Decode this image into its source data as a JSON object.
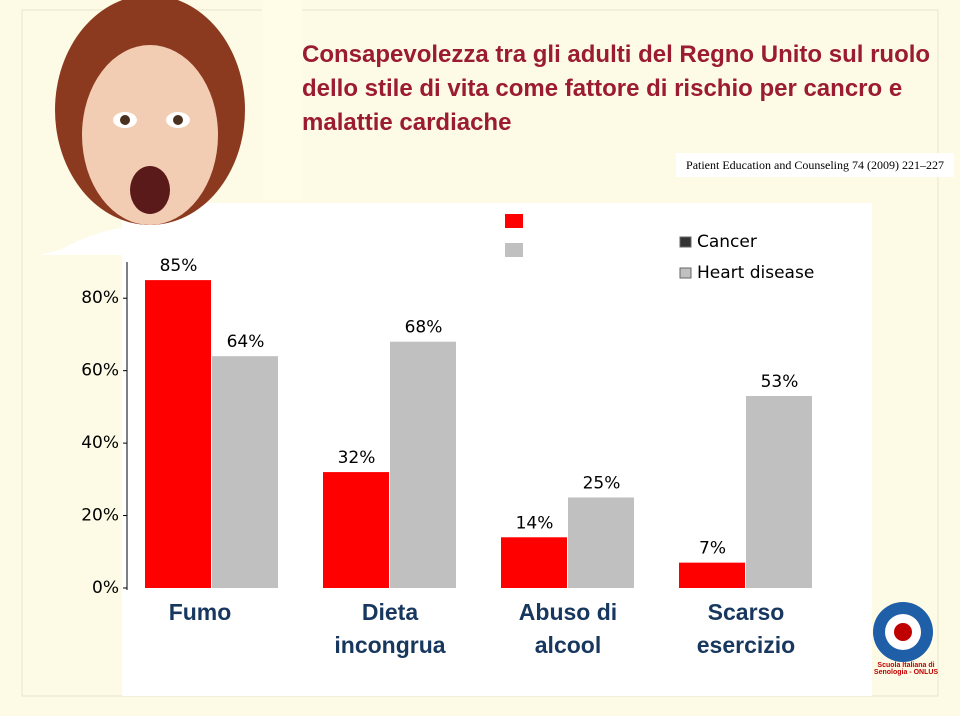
{
  "chart_data": {
    "type": "bar",
    "title": "Consapevolezza tra gli adulti del Regno Unito sul ruolo dello stile di vita come fattore di rischio per cancro e malattie cardiache",
    "source": "Patient Education and Counseling 74 (2009) 221–227",
    "logo_text": "Scuola Italiana di Senologia - ONLUS",
    "categories": [
      "Fumo",
      "Dieta incongrua",
      "Abuso di alcool",
      "Scarso esercizio"
    ],
    "series": [
      {
        "name": "Cancer",
        "color": "#ff0000",
        "values": [
          85,
          32,
          14,
          7
        ],
        "value_labels": [
          "85%",
          "32%",
          "14%",
          "7%"
        ]
      },
      {
        "name": "Heart disease",
        "color": "#c0c0c0",
        "values": [
          64,
          68,
          25,
          53
        ],
        "value_labels": [
          "64%",
          "68%",
          "25%",
          "53%"
        ]
      }
    ],
    "ylim": [
      0,
      90
    ],
    "yticks": [
      {
        "value": 0,
        "label": "0%"
      },
      {
        "value": 20,
        "label": "20%"
      },
      {
        "value": 40,
        "label": "40%"
      },
      {
        "value": 60,
        "label": "60%"
      },
      {
        "value": 80,
        "label": "80%"
      }
    ],
    "grid": false
  }
}
